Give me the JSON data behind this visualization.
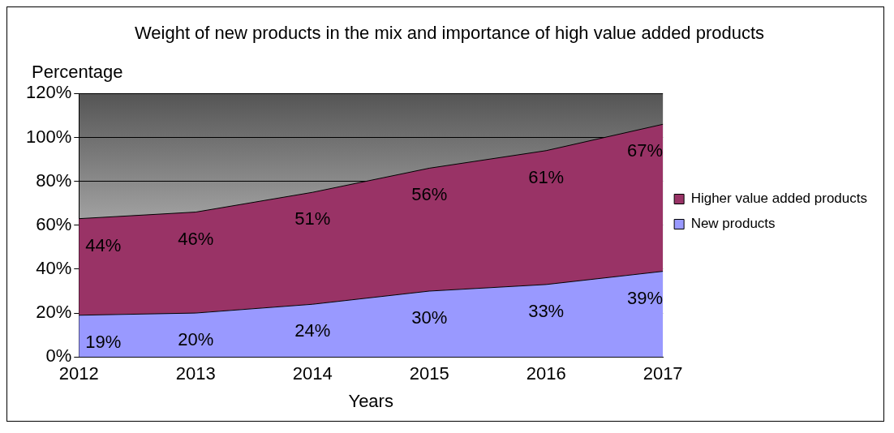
{
  "chart_data": {
    "type": "area",
    "title": "Weight of new products in the mix and importance of high value added products",
    "xlabel": "Years",
    "ylabel": "Percentage",
    "categories": [
      "2012",
      "2013",
      "2014",
      "2015",
      "2016",
      "2017"
    ],
    "stacked": true,
    "series": [
      {
        "name": "New products",
        "color": "#9999ff",
        "values": [
          19,
          20,
          24,
          30,
          33,
          39
        ],
        "value_labels": [
          "19%",
          "20%",
          "24%",
          "30%",
          "33%",
          "39%"
        ]
      },
      {
        "name": "Higher value added products",
        "color": "#993366",
        "values": [
          44,
          46,
          51,
          56,
          61,
          67
        ],
        "value_labels": [
          "44%",
          "46%",
          "51%",
          "56%",
          "61%",
          "67%"
        ]
      }
    ],
    "ylim": [
      0,
      120
    ],
    "yticks": [
      {
        "value": 0,
        "label": "0%"
      },
      {
        "value": 20,
        "label": "20%"
      },
      {
        "value": 40,
        "label": "40%"
      },
      {
        "value": 60,
        "label": "60%"
      },
      {
        "value": 80,
        "label": "80%"
      },
      {
        "value": 100,
        "label": "100%"
      },
      {
        "value": 120,
        "label": "120%"
      }
    ],
    "grid": "y",
    "legend": "right"
  }
}
